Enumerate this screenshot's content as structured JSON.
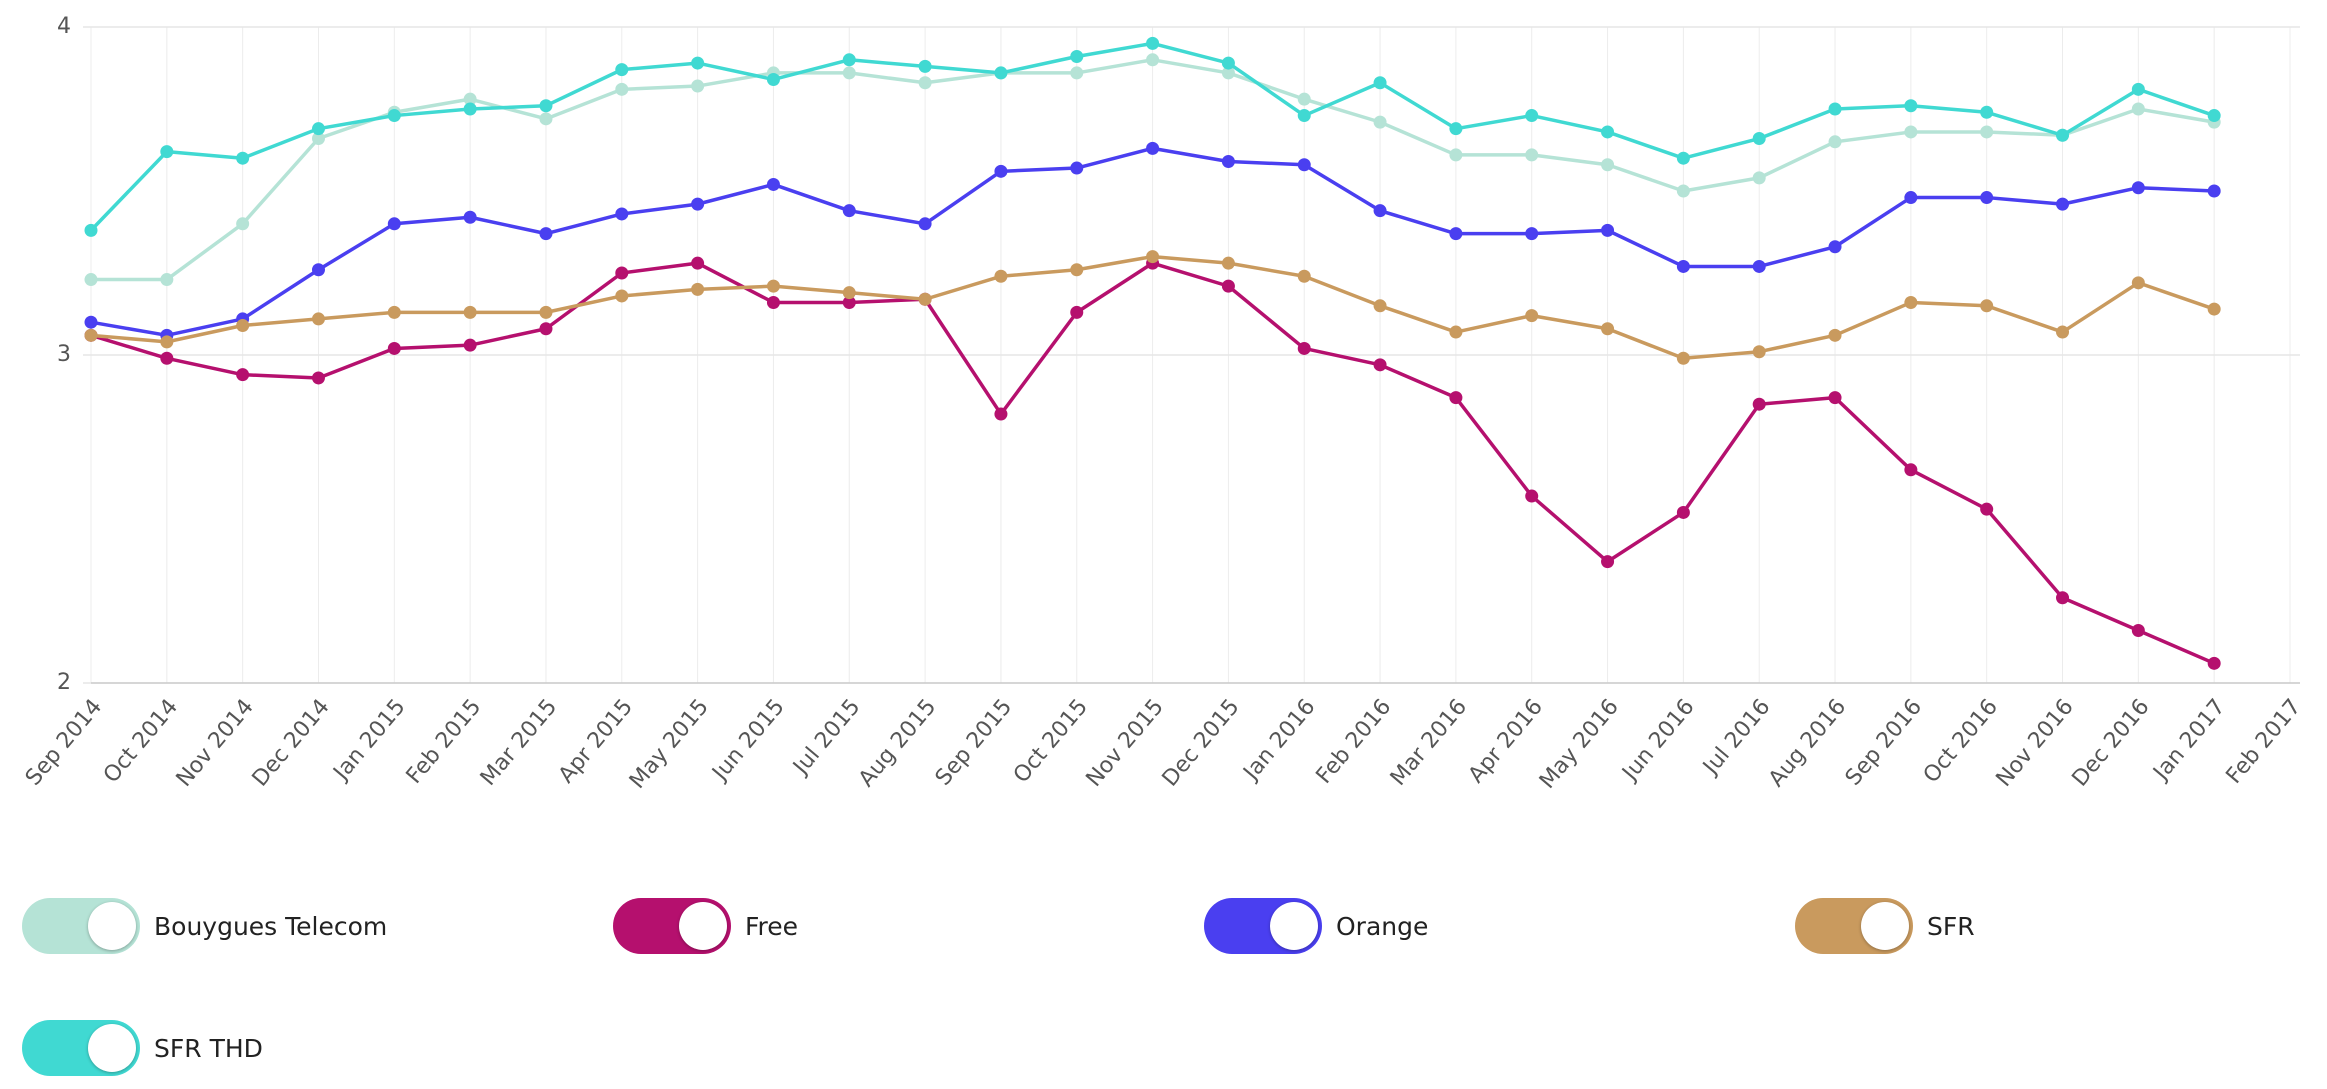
{
  "chart_data": {
    "type": "line",
    "categories": [
      "Sep 2014",
      "Oct 2014",
      "Nov 2014",
      "Dec 2014",
      "Jan 2015",
      "Feb 2015",
      "Mar 2015",
      "Apr 2015",
      "May 2015",
      "Jun 2015",
      "Jul 2015",
      "Aug 2015",
      "Sep 2015",
      "Oct 2015",
      "Nov 2015",
      "Dec 2015",
      "Jan 2016",
      "Feb 2016",
      "Mar 2016",
      "Apr 2016",
      "May 2016",
      "Jun 2016",
      "Jul 2016",
      "Aug 2016",
      "Sep 2016",
      "Oct 2016",
      "Nov 2016",
      "Dec 2016",
      "Jan 2017",
      "Feb 2017"
    ],
    "ylim": [
      2,
      4
    ],
    "yticks": [
      2,
      3,
      4
    ],
    "grid": true,
    "series": [
      {
        "name": "Bouygues Telecom",
        "color": "#b5e3d6",
        "values": [
          3.23,
          3.23,
          3.4,
          3.66,
          3.74,
          3.78,
          3.72,
          3.81,
          3.82,
          3.86,
          3.86,
          3.83,
          3.86,
          3.86,
          3.9,
          3.86,
          3.78,
          3.71,
          3.61,
          3.61,
          3.58,
          3.5,
          3.54,
          3.65,
          3.68,
          3.68,
          3.67,
          3.75,
          3.71,
          null
        ]
      },
      {
        "name": "Free",
        "color": "#b5106e",
        "values": [
          3.06,
          2.99,
          2.94,
          2.93,
          3.02,
          3.03,
          3.08,
          3.25,
          3.28,
          3.16,
          3.16,
          3.17,
          2.82,
          3.13,
          3.28,
          3.21,
          3.02,
          2.97,
          2.87,
          2.57,
          2.37,
          2.52,
          2.85,
          2.87,
          2.65,
          2.53,
          2.26,
          2.16,
          2.06,
          null
        ]
      },
      {
        "name": "Orange",
        "color": "#4a3ff0",
        "values": [
          3.1,
          3.06,
          3.11,
          3.26,
          3.4,
          3.42,
          3.37,
          3.43,
          3.46,
          3.52,
          3.44,
          3.4,
          3.56,
          3.57,
          3.63,
          3.59,
          3.58,
          3.44,
          3.37,
          3.37,
          3.38,
          3.27,
          3.27,
          3.33,
          3.48,
          3.48,
          3.46,
          3.51,
          3.5,
          null
        ]
      },
      {
        "name": "SFR",
        "color": "#c99a5e",
        "values": [
          3.06,
          3.04,
          3.09,
          3.11,
          3.13,
          3.13,
          3.13,
          3.18,
          3.2,
          3.21,
          3.19,
          3.17,
          3.24,
          3.26,
          3.3,
          3.28,
          3.24,
          3.15,
          3.07,
          3.12,
          3.08,
          2.99,
          3.01,
          3.06,
          3.16,
          3.15,
          3.07,
          3.22,
          3.14,
          null
        ]
      },
      {
        "name": "SFR THD",
        "color": "#40d9d2",
        "values": [
          3.38,
          3.62,
          3.6,
          3.69,
          3.73,
          3.75,
          3.76,
          3.87,
          3.89,
          3.84,
          3.9,
          3.88,
          3.86,
          3.91,
          3.95,
          3.89,
          3.73,
          3.83,
          3.69,
          3.73,
          3.68,
          3.6,
          3.66,
          3.75,
          3.76,
          3.74,
          3.67,
          3.81,
          3.73,
          null
        ]
      }
    ]
  }
}
